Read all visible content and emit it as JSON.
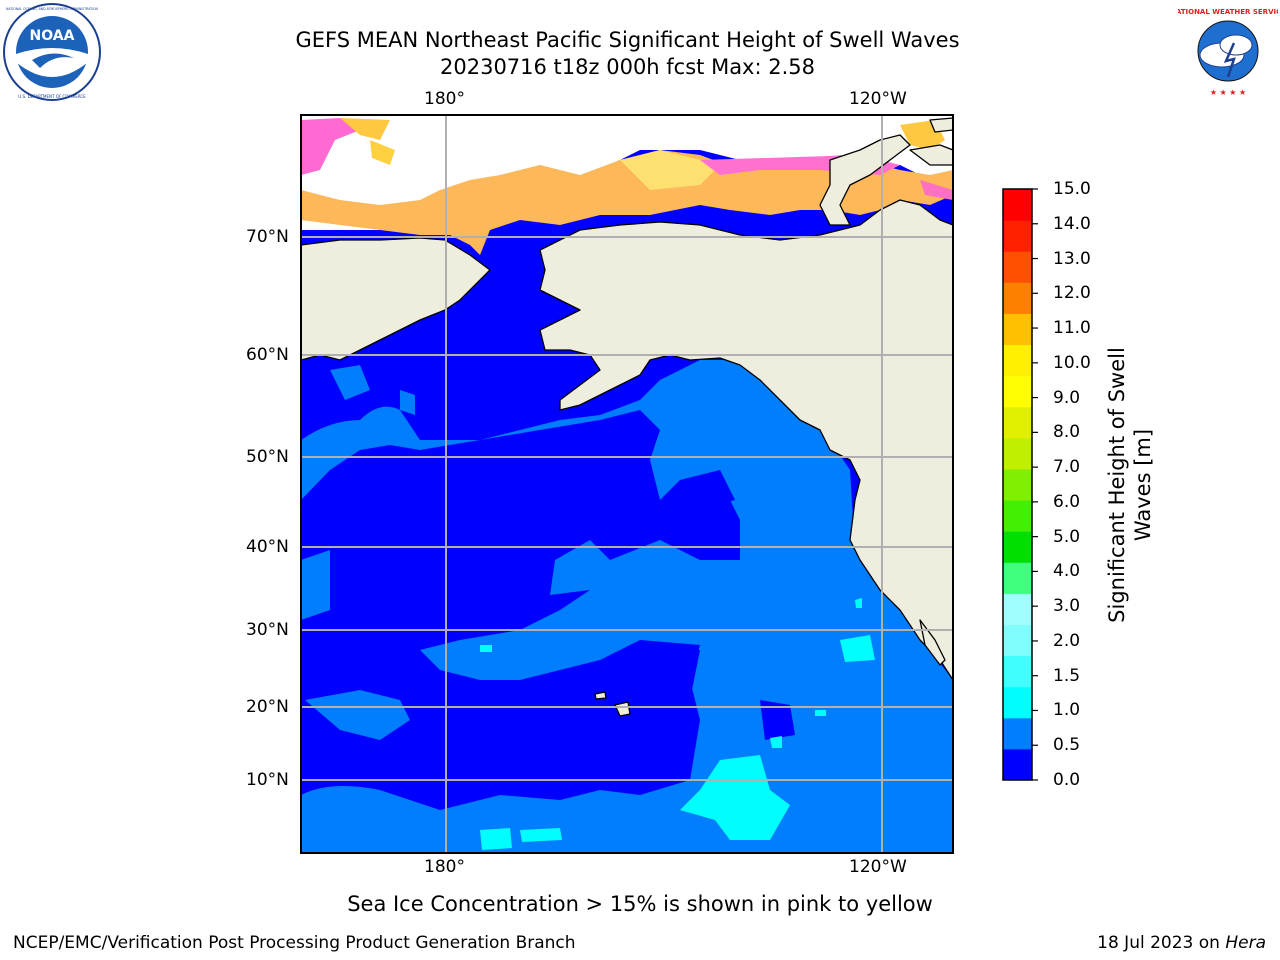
{
  "title": {
    "line1": "GEFS MEAN Northeast Pacific Significant Height of Swell Waves",
    "line2": "20230716 t18z 000h fcst   Max: 2.58"
  },
  "map": {
    "top_lon_labels": [
      "180°",
      "120°W"
    ],
    "bottom_lon_labels": [
      "180°",
      "120°W"
    ],
    "lat_labels": [
      "70°N",
      "60°N",
      "50°N",
      "40°N",
      "30°N",
      "20°N",
      "10°N"
    ],
    "ocean_base_color": "#0000fe",
    "land_color": "#efedde",
    "gridlines": true
  },
  "colorbar": {
    "title": "Significant Height of Swell Waves [m]",
    "ticks": [
      "15.0",
      "14.0",
      "13.0",
      "12.0",
      "11.0",
      "10.0",
      "9.0",
      "8.0",
      "7.0",
      "6.0",
      "5.0",
      "4.0",
      "3.0",
      "2.0",
      "1.5",
      "1.0",
      "0.5",
      "0.0"
    ],
    "colors_bottom_to_top": [
      "#0000fe",
      "#007efe",
      "#00fefe",
      "#40fefe",
      "#80fefe",
      "#a0fefe",
      "#40fe80",
      "#00e000",
      "#40f000",
      "#80f000",
      "#c0f000",
      "#e0f000",
      "#fefe00",
      "#fef000",
      "#fec000",
      "#fe8000",
      "#fe5000",
      "#fe2000",
      "#fe0000"
    ]
  },
  "logos": {
    "noaa_text": "NOAA",
    "noaa_ring_text": "NATIONAL OCEANIC AND ATMOSPHERIC ADMINISTRATION",
    "noaa_ring_bottom": "U.S. DEPARTMENT OF COMMERCE",
    "nws_text": "NATIONAL WEATHER SERVICE"
  },
  "footer": {
    "note": "Sea Ice Concentration > 15% is shown in pink to yellow",
    "left": "NCEP/EMC/Verification Post Processing Product Generation Branch",
    "right_prefix": "18 Jul 2023 on ",
    "right_machine": "Hera"
  }
}
